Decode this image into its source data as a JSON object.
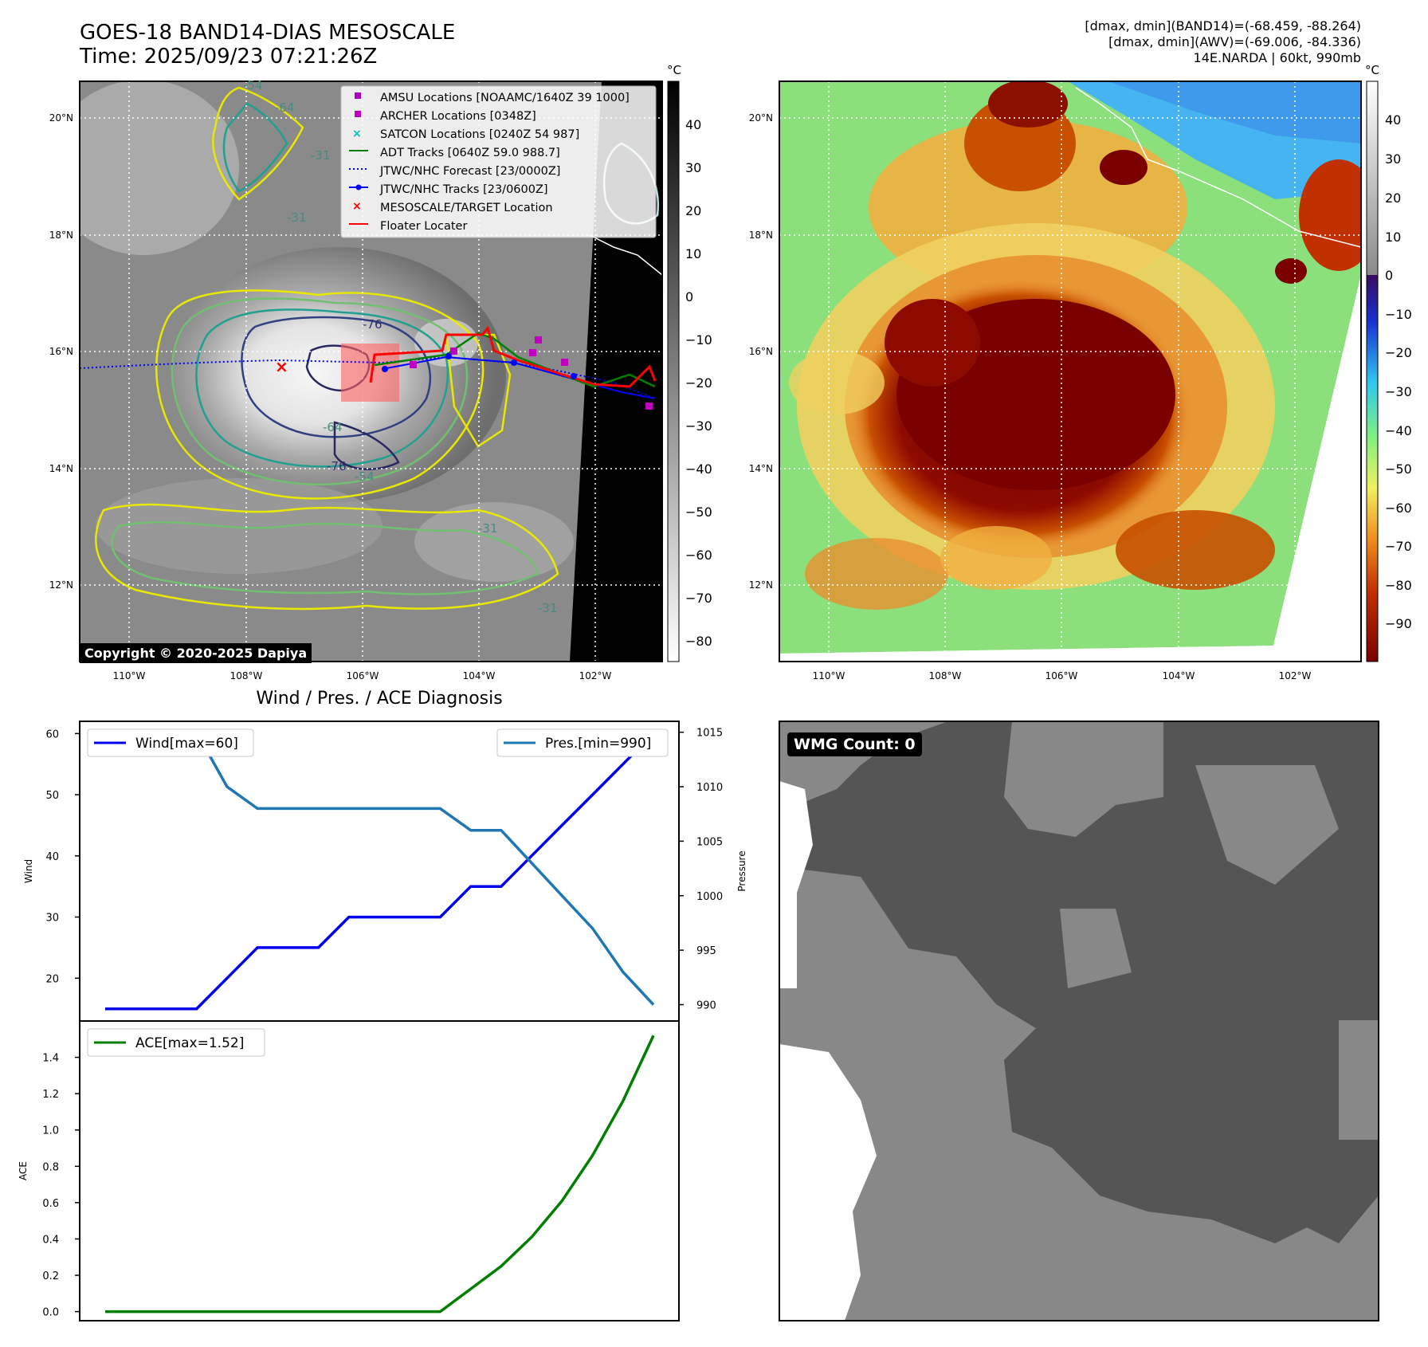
{
  "header": {
    "title_line1": "GOES-18 BAND14-DIAS MESOSCALE",
    "title_line2": "Time: 2025/09/23 07:21:26Z",
    "info_line1": "[dmax, dmin](BAND14)=(-68.459, -88.264)",
    "info_line2": "[dmax, dmin](AWV)=(-69.006, -84.336)",
    "info_line3": "14E.NARDA | 60kt, 990mb"
  },
  "ir_map": {
    "lat_labels": [
      "20°N",
      "18°N",
      "16°N",
      "14°N",
      "12°N"
    ],
    "lon_labels": [
      "110°W",
      "108°W",
      "106°W",
      "104°W",
      "102°W"
    ],
    "contour_labels": [
      "-54",
      "-64",
      "-31",
      "-31",
      "-76",
      "-64",
      "-76",
      "-54",
      "-31",
      "-31"
    ],
    "copyright": "Copyright © 2020-2025 Dapiya",
    "legend": [
      {
        "label": "AMSU Locations [NOAAMC/1640Z 39 1000]",
        "marker": "square",
        "color": "#b000c0"
      },
      {
        "label": "ARCHER Locations [0348Z]",
        "marker": "square",
        "color": "#c000c0"
      },
      {
        "label": "SATCON Locations [0240Z 54 987]",
        "marker": "x",
        "color": "#00c0c0"
      },
      {
        "label": "ADT Tracks [0640Z 59.0 988.7]",
        "marker": "line",
        "color": "#008000"
      },
      {
        "label": "JTWC/NHC Forecast [23/0000Z]",
        "marker": "dotted",
        "color": "#0000ff"
      },
      {
        "label": "JTWC/NHC Tracks [23/0600Z]",
        "marker": "line-dot",
        "color": "#0000ff"
      },
      {
        "label": "MESOSCALE/TARGET Location",
        "marker": "x",
        "color": "#ff0000"
      },
      {
        "label": "Floater Locater",
        "marker": "line",
        "color": "#ff0000"
      }
    ],
    "colorbar": {
      "unit": "°C",
      "ticks": [
        "40",
        "30",
        "20",
        "10",
        "0",
        "−10",
        "−20",
        "−30",
        "−40",
        "−50",
        "−60",
        "−70",
        "−80"
      ]
    }
  },
  "color_map": {
    "lat_labels": [
      "20°N",
      "18°N",
      "16°N",
      "14°N",
      "12°N"
    ],
    "lon_labels": [
      "110°W",
      "108°W",
      "106°W",
      "104°W",
      "102°W"
    ],
    "colorbar": {
      "unit": "°C",
      "ticks": [
        "40",
        "30",
        "20",
        "10",
        "0",
        "−10",
        "−20",
        "−30",
        "−40",
        "−50",
        "−60",
        "−70",
        "−80",
        "−90"
      ]
    }
  },
  "wmg": {
    "label": "WMG Count: 0"
  },
  "chart_data": [
    {
      "type": "line",
      "title": "Wind / Pres. / ACE Diagnosis",
      "ylabel": "Wind",
      "ylabel_right": "Pressure",
      "x": [
        0,
        1,
        2,
        3,
        4,
        5,
        6,
        7,
        8,
        9,
        10,
        11,
        12,
        13,
        14,
        15,
        16,
        17,
        18
      ],
      "series": [
        {
          "name": "Wind[max=60]",
          "axis": "left",
          "color": "#0000ee",
          "values": [
            15,
            15,
            15,
            15,
            20,
            25,
            25,
            25,
            30,
            30,
            30,
            30,
            35,
            35,
            40,
            45,
            50,
            55,
            60
          ]
        },
        {
          "name": "Pres.[min=990]",
          "axis": "right",
          "color": "#1f77b4",
          "values": [
            1015,
            1015,
            1015,
            1015,
            1010,
            1008,
            1008,
            1008,
            1008,
            1008,
            1008,
            1008,
            1006,
            1006,
            1003,
            1000,
            997,
            993,
            990
          ]
        }
      ],
      "ylim": [
        13,
        62
      ],
      "y_ticks": [
        "20",
        "30",
        "40",
        "50",
        "60"
      ],
      "ylim_right": [
        988.5,
        1016
      ],
      "y_ticks_right": [
        "990",
        "995",
        "1000",
        "1005",
        "1010",
        "1015"
      ]
    },
    {
      "type": "line",
      "ylabel": "ACE",
      "x": [
        0,
        1,
        2,
        3,
        4,
        5,
        6,
        7,
        8,
        9,
        10,
        11,
        12,
        13,
        14,
        15,
        16,
        17,
        18
      ],
      "series": [
        {
          "name": "ACE[max=1.52]",
          "color": "#007f00",
          "values": [
            0,
            0,
            0,
            0,
            0,
            0,
            0,
            0,
            0,
            0,
            0,
            0,
            0.125,
            0.25,
            0.41,
            0.61,
            0.86,
            1.16,
            1.52
          ]
        }
      ],
      "ylim": [
        -0.05,
        1.6
      ],
      "y_ticks": [
        "0.0",
        "0.2",
        "0.4",
        "0.6",
        "0.8",
        "1.0",
        "1.2",
        "1.4"
      ]
    }
  ]
}
